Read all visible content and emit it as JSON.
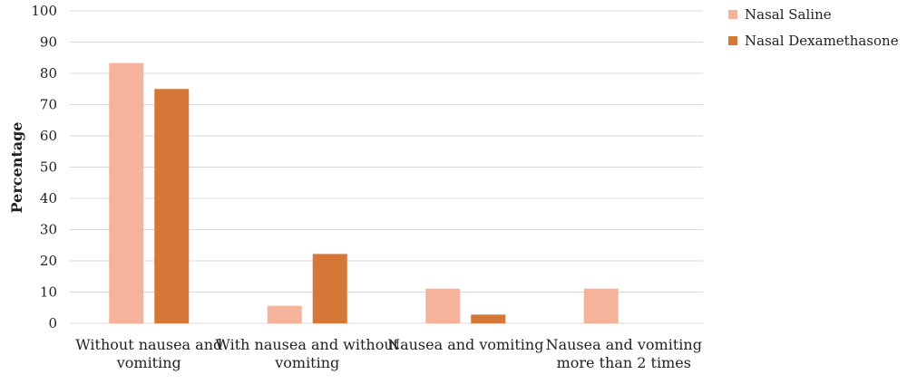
{
  "chart_data": {
    "type": "bar",
    "categories": [
      [
        "Without nausea and",
        "vomiting"
      ],
      [
        "With nausea and without",
        "vomiting"
      ],
      [
        "Nausea and vomiting"
      ],
      [
        "Nausea and vomiting",
        "more than 2 times"
      ]
    ],
    "series": [
      {
        "name": "Nasal Saline",
        "color": "#F4B39A",
        "values": [
          83.3,
          5.6,
          11.1,
          11.1
        ]
      },
      {
        "name": "Nasal Dexamethasone",
        "color": "#D57736",
        "values": [
          75.0,
          22.2,
          2.8,
          0
        ]
      }
    ],
    "ylabel": "Percentage",
    "xlabel": "",
    "title": "",
    "ylim": [
      0,
      100
    ],
    "yticks": [
      0,
      10,
      20,
      30,
      40,
      50,
      60,
      70,
      80,
      90,
      100
    ],
    "grid": true,
    "legend_position": "top-right",
    "gridline_color": "#D9D9D9"
  }
}
